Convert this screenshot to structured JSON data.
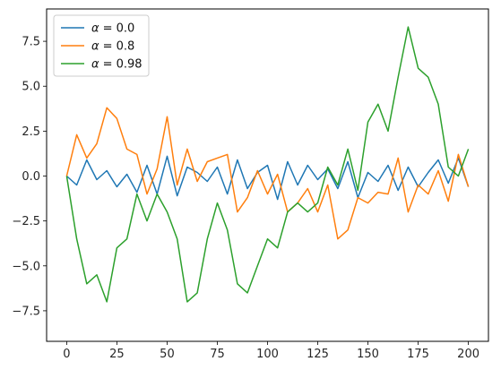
{
  "chart_data": {
    "type": "line",
    "title": "",
    "xlabel": "",
    "ylabel": "",
    "xlim": [
      -10,
      210
    ],
    "ylim": [
      -9.2,
      9.3
    ],
    "xticks": [
      0,
      25,
      50,
      75,
      100,
      125,
      150,
      175,
      200
    ],
    "yticks": [
      -7.5,
      -5.0,
      -2.5,
      0.0,
      2.5,
      5.0,
      7.5
    ],
    "xtick_labels": [
      "0",
      "25",
      "50",
      "75",
      "100",
      "125",
      "150",
      "175",
      "200"
    ],
    "ytick_labels": [
      "−7.5",
      "−5.0",
      "−2.5",
      "0.0",
      "2.5",
      "5.0",
      "7.5"
    ],
    "grid": false,
    "legend_position": "upper-left",
    "x": [
      0,
      5,
      10,
      15,
      20,
      25,
      30,
      35,
      40,
      45,
      50,
      55,
      60,
      65,
      70,
      75,
      80,
      85,
      90,
      95,
      100,
      105,
      110,
      115,
      120,
      125,
      130,
      135,
      140,
      145,
      150,
      155,
      160,
      165,
      170,
      175,
      180,
      185,
      190,
      195,
      200
    ],
    "series": [
      {
        "name": "α = 0.0",
        "legend_prefix": "α",
        "legend_value": "= 0.0",
        "color": "#1f77b4",
        "values": [
          0.0,
          -0.5,
          0.9,
          -0.2,
          0.3,
          -0.6,
          0.1,
          -0.9,
          0.6,
          -1.0,
          1.1,
          -1.1,
          0.5,
          0.2,
          -0.3,
          0.5,
          -1.0,
          0.9,
          -0.7,
          0.2,
          0.6,
          -1.3,
          0.8,
          -0.5,
          0.6,
          -0.2,
          0.4,
          -0.7,
          0.8,
          -1.2,
          0.2,
          -0.3,
          0.6,
          -0.8,
          0.5,
          -0.6,
          0.2,
          0.9,
          -0.4,
          1.0,
          -0.6
        ]
      },
      {
        "name": "α = 0.8",
        "legend_prefix": "α",
        "legend_value": "= 0.8",
        "color": "#ff7f0e",
        "values": [
          0.0,
          2.3,
          1.0,
          1.8,
          3.8,
          3.2,
          1.5,
          1.2,
          -1.0,
          0.4,
          3.3,
          -0.5,
          1.5,
          -0.3,
          0.8,
          1.0,
          1.2,
          -2.0,
          -1.2,
          0.3,
          -1.0,
          0.1,
          -2.0,
          -1.5,
          -0.7,
          -2.0,
          -0.5,
          -3.5,
          -3.0,
          -1.2,
          -1.5,
          -0.9,
          -1.0,
          1.0,
          -2.0,
          -0.5,
          -1.0,
          0.3,
          -1.4,
          1.2,
          -0.6
        ]
      },
      {
        "name": "α = 0.98",
        "legend_prefix": "α",
        "legend_value": "= 0.98",
        "color": "#2ca02c",
        "values": [
          0.0,
          -3.5,
          -6.0,
          -5.5,
          -7.0,
          -4.0,
          -3.5,
          -1.0,
          -2.5,
          -1.0,
          -2.0,
          -3.5,
          -7.0,
          -6.5,
          -3.5,
          -1.5,
          -3.0,
          -6.0,
          -6.5,
          -5.0,
          -3.5,
          -4.0,
          -2.0,
          -1.5,
          -2.0,
          -1.5,
          0.5,
          -0.5,
          1.5,
          -0.8,
          3.0,
          4.0,
          2.5,
          5.5,
          8.3,
          6.0,
          5.5,
          4.0,
          0.5,
          0.0,
          1.5
        ]
      }
    ]
  }
}
